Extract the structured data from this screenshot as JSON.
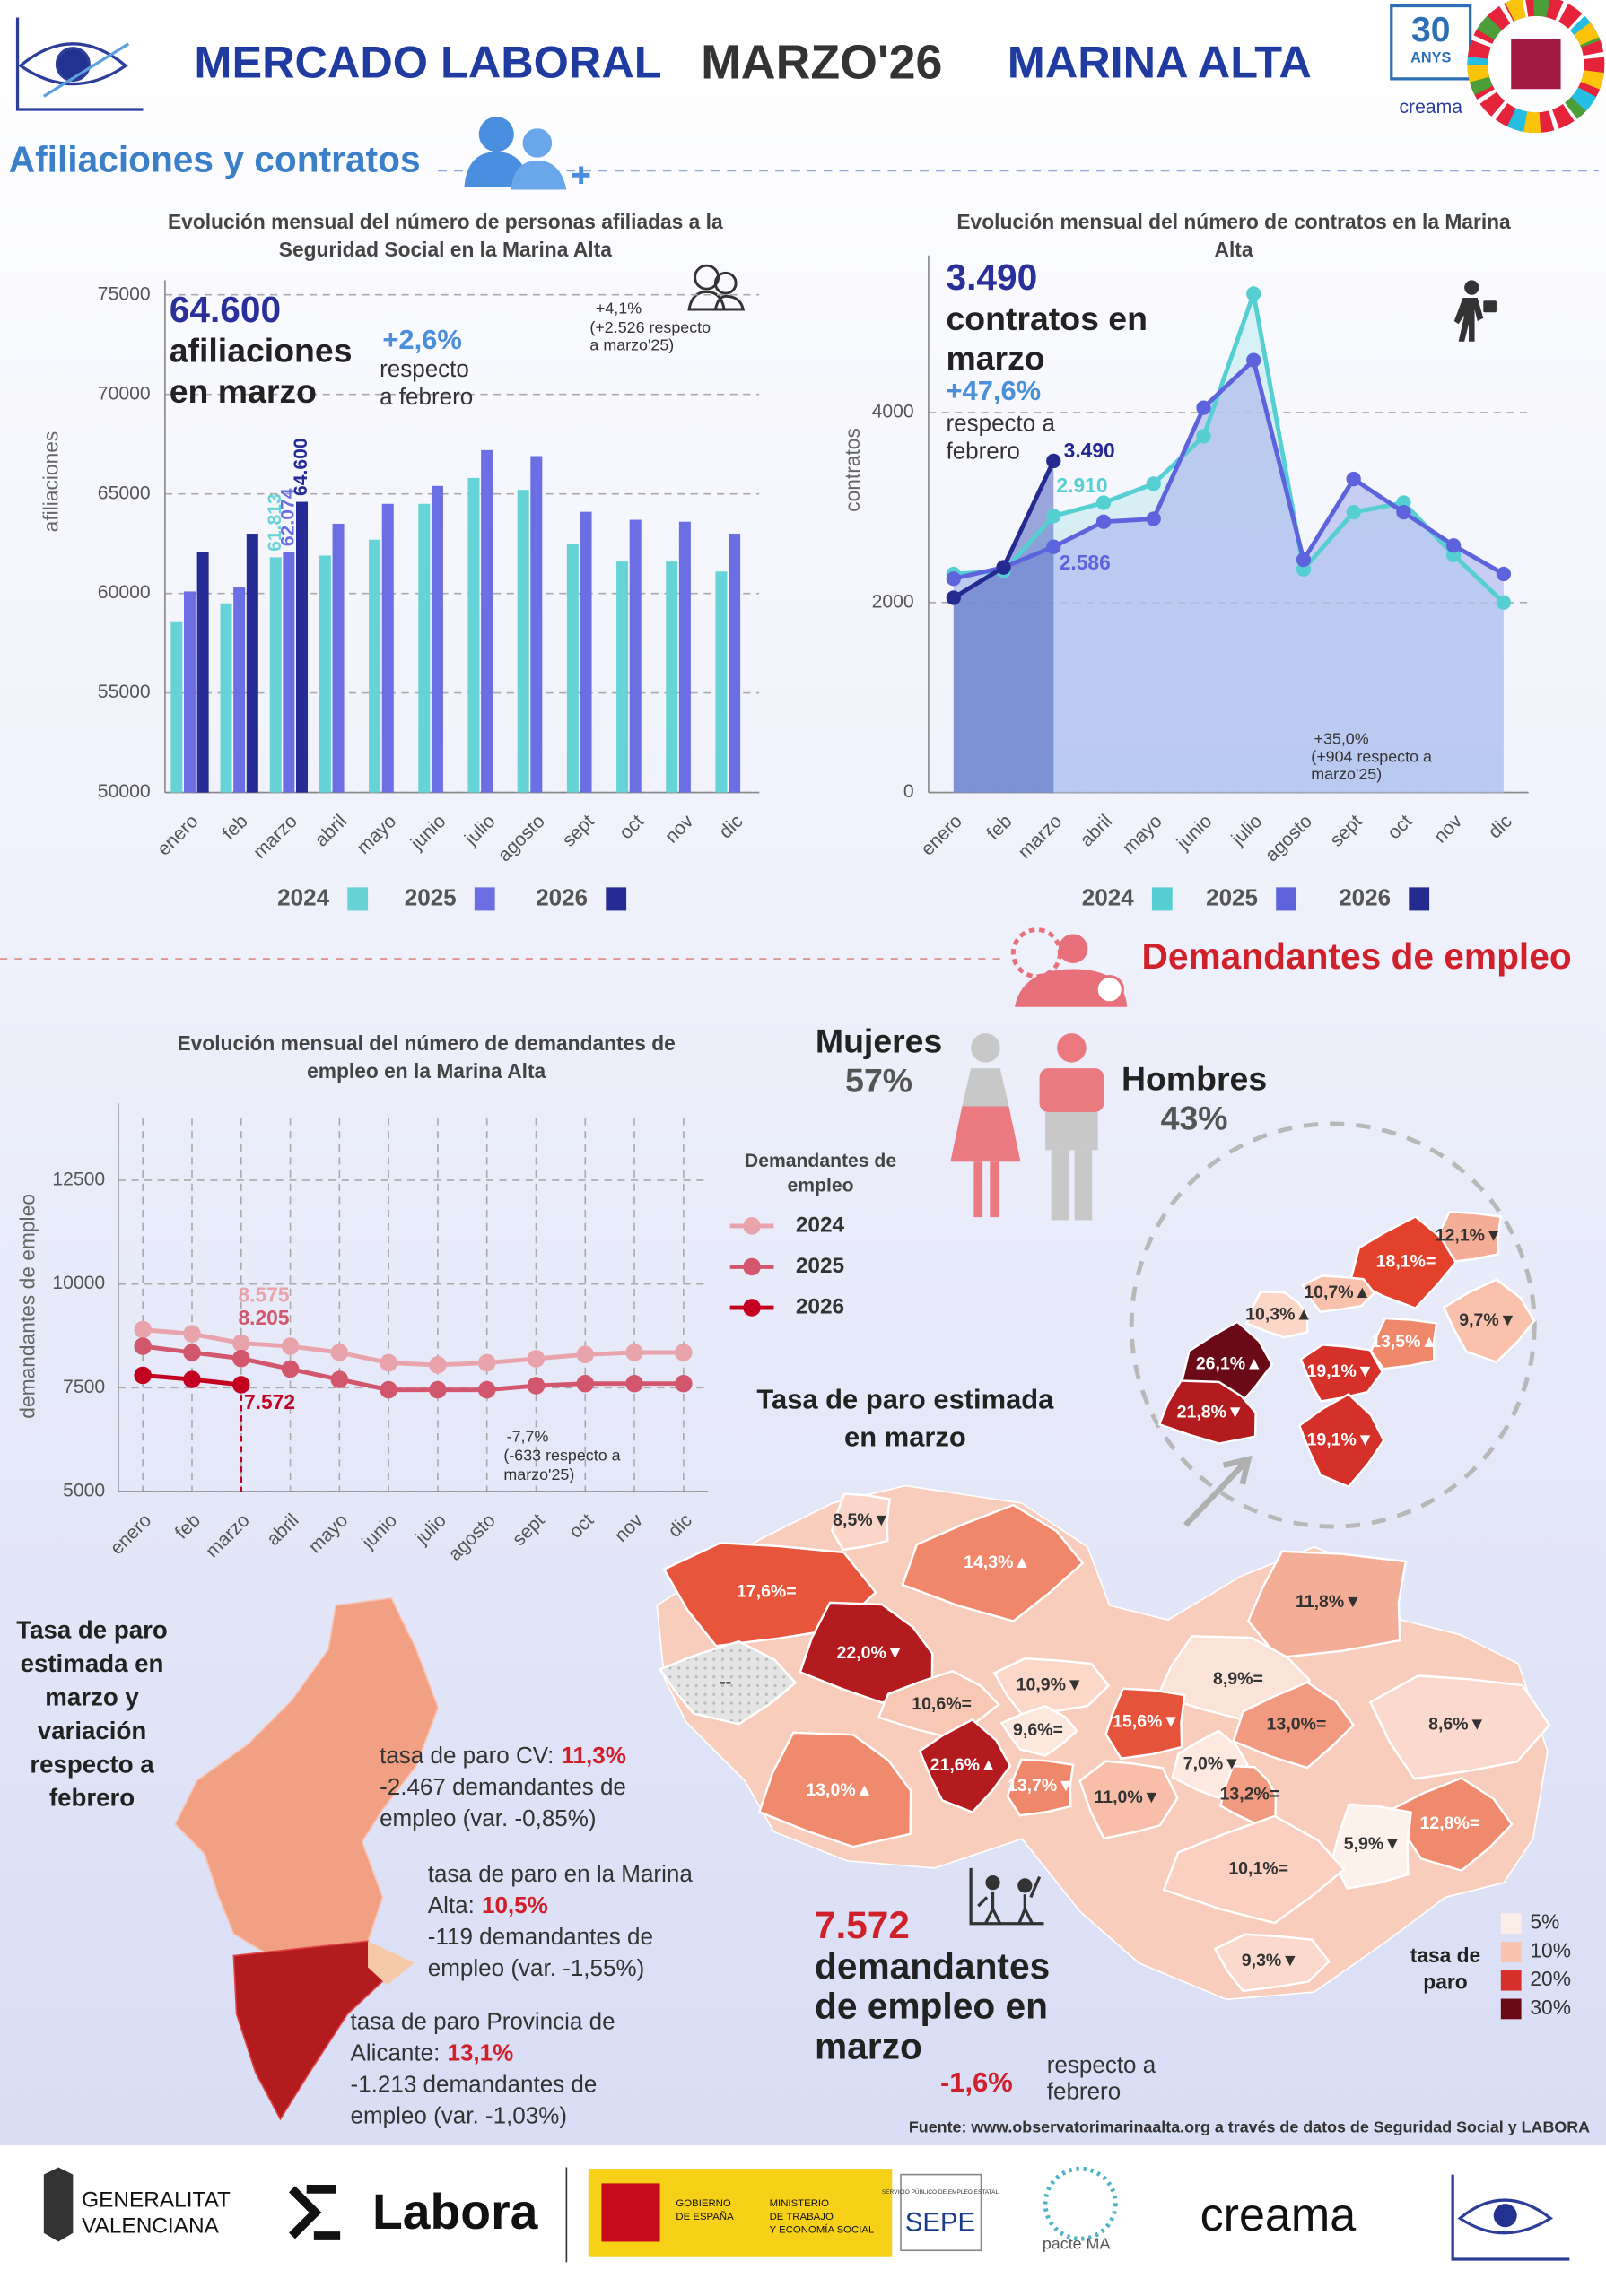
{
  "header": {
    "title_a": "MERCADO LABORAL",
    "title_b": "MARZO'26",
    "title_c": "MARINA ALTA",
    "logo_years": "30",
    "logo_anys": "ANYS",
    "logo_creama": "creama"
  },
  "section_1": "Afiliaciones y contratos",
  "section_2": "Demandantes de empleo",
  "chart_data": [
    {
      "type": "bar",
      "title": [
        "Evolución mensual del número de personas afiliadas a la",
        "Seguridad Social en la Marina Alta"
      ],
      "y_label": "afiliaciones",
      "categories": [
        "enero",
        "feb",
        "marzo",
        "abril",
        "mayo",
        "junio",
        "julio",
        "agosto",
        "sept",
        "oct",
        "nov",
        "dic"
      ],
      "series": [
        {
          "name": "2024",
          "color": "#66d4d6",
          "values": [
            58600,
            59500,
            61813,
            61900,
            62700,
            64500,
            65800,
            65200,
            62500,
            61600,
            61600,
            61100
          ],
          "value_labels": [
            null,
            null,
            "61.813",
            null,
            null,
            null,
            null,
            null,
            null,
            null,
            null,
            null
          ]
        },
        {
          "name": "2025",
          "color": "#6b6fe3",
          "values": [
            60100,
            60300,
            62074,
            63500,
            64500,
            65400,
            67200,
            66900,
            64100,
            63700,
            63600,
            63000
          ],
          "value_labels": [
            null,
            null,
            "62.074",
            null,
            null,
            null,
            null,
            null,
            null,
            null,
            null,
            null
          ]
        },
        {
          "name": "2026",
          "color": "#262c96",
          "values": [
            62100,
            63000,
            64600,
            null,
            null,
            null,
            null,
            null,
            null,
            null,
            null,
            null
          ],
          "value_labels": [
            null,
            null,
            "64.600",
            null,
            null,
            null,
            null,
            null,
            null,
            null,
            null,
            null
          ]
        }
      ],
      "ylim": [
        50000,
        75000
      ],
      "yticks": [
        50000,
        55000,
        60000,
        65000,
        70000,
        75000
      ],
      "grid": true,
      "annotations": [
        "64.600",
        "afiliaciones",
        "en marzo",
        "+2,6%",
        "respecto",
        "a febrero",
        "+4,1%",
        "(+2.526 respecto",
        "a marzo'25)"
      ]
    },
    {
      "type": "area",
      "title": [
        "Evolución mensual del número de contratos en la Marina",
        "Alta"
      ],
      "y_label": "contratos",
      "categories": [
        "enero",
        "feb",
        "marzo",
        "abril",
        "mayo",
        "junio",
        "julio",
        "agosto",
        "sept",
        "oct",
        "nov",
        "dic"
      ],
      "series": [
        {
          "name": "2024",
          "color": "#55cfd2",
          "values": [
            2300,
            2330,
            2910,
            3050,
            3250,
            3750,
            5250,
            2350,
            2950,
            3050,
            2500,
            2000
          ],
          "value_labels": [
            null,
            null,
            "2.910",
            null,
            null,
            null,
            null,
            null,
            null,
            null,
            null,
            null
          ]
        },
        {
          "name": "2025",
          "color": "#5d63dc",
          "values": [
            2250,
            2370,
            2586,
            2850,
            2880,
            4050,
            4550,
            2450,
            3300,
            2950,
            2600,
            2300
          ],
          "value_labels": [
            null,
            null,
            "2.586",
            null,
            null,
            null,
            null,
            null,
            null,
            null,
            null,
            null
          ]
        },
        {
          "name": "2026",
          "color": "#242a90",
          "values": [
            2050,
            2370,
            3490,
            null,
            null,
            null,
            null,
            null,
            null,
            null,
            null,
            null
          ],
          "value_labels": [
            null,
            null,
            "3.490",
            null,
            null,
            null,
            null,
            null,
            null,
            null,
            null,
            null
          ]
        }
      ],
      "ylim": [
        0,
        5500
      ],
      "yticks": [
        0,
        2000,
        4000
      ],
      "grid": true,
      "annotations": [
        "3.490",
        "contratos en",
        "marzo",
        "+47,6%",
        "respecto a",
        "febrero",
        "+35,0%",
        "(+904 respecto a",
        "marzo'25)"
      ]
    },
    {
      "type": "line",
      "title": [
        "Evolución mensual del número de demandantes de",
        "empleo en la Marina Alta"
      ],
      "y_label": "demandantes de empleo",
      "legend_title": [
        "Demandantes de",
        "empleo"
      ],
      "categories": [
        "enero",
        "feb",
        "marzo",
        "abril",
        "mayo",
        "junio",
        "julio",
        "agosto",
        "sept",
        "oct",
        "nov",
        "dic"
      ],
      "series": [
        {
          "name": "2024",
          "color": "#e9a3ab",
          "values": [
            8900,
            8800,
            8575,
            8500,
            8350,
            8100,
            8050,
            8100,
            8200,
            8300,
            8350,
            8350
          ],
          "value_labels": [
            null,
            null,
            "8.575",
            null,
            null,
            null,
            null,
            null,
            null,
            null,
            null,
            null
          ]
        },
        {
          "name": "2025",
          "color": "#d2566c",
          "values": [
            8500,
            8350,
            8205,
            7950,
            7700,
            7450,
            7450,
            7450,
            7550,
            7600,
            7600,
            7600
          ],
          "value_labels": [
            null,
            null,
            "8.205",
            null,
            null,
            null,
            null,
            null,
            null,
            null,
            null,
            null
          ]
        },
        {
          "name": "2026",
          "color": "#c40021",
          "values": [
            7800,
            7700,
            7572,
            null,
            null,
            null,
            null,
            null,
            null,
            null,
            null,
            null
          ],
          "value_labels": [
            null,
            null,
            "7.572",
            null,
            null,
            null,
            null,
            null,
            null,
            null,
            null,
            null
          ]
        }
      ],
      "ylim": [
        5000,
        14000
      ],
      "yticks": [
        5000,
        7500,
        10000,
        12500
      ],
      "grid": true,
      "annotations": [
        "-7,7%",
        "(-633 respecto a",
        "marzo'25)"
      ]
    }
  ],
  "gender": {
    "women_label": "Mujeres",
    "women_value": "57%",
    "men_label": "Hombres",
    "men_value": "43%"
  },
  "map": {
    "title": [
      "Tasa de paro estimada",
      "en marzo"
    ],
    "regions": [
      {
        "label": "8,5%▼",
        "color": "#fbd6c8"
      },
      {
        "label": "14,3%▲",
        "color": "#f0876a"
      },
      {
        "label": "17,6%=",
        "color": "#e6553c"
      },
      {
        "label": "22,0%▼",
        "color": "#b31b1f"
      },
      {
        "label": "--",
        "color": "#dcdcdc"
      },
      {
        "label": "11,8%▼",
        "color": "#f4ad96"
      },
      {
        "label": "10,6%=",
        "color": "#f9c8b4"
      },
      {
        "label": "10,9%▼",
        "color": "#fcd8c9"
      },
      {
        "label": "8,9%=",
        "color": "#fbe3d8"
      },
      {
        "label": "9,6%=",
        "color": "#fde8de"
      },
      {
        "label": "15,6%▼",
        "color": "#e5533b"
      },
      {
        "label": "13,0%=",
        "color": "#f29a80"
      },
      {
        "label": "8,6%▼",
        "color": "#fbd9cc"
      },
      {
        "label": "13,0%▲",
        "color": "#f08a6c"
      },
      {
        "label": "21,6%▲",
        "color": "#b31b1f"
      },
      {
        "label": "13,7%▼",
        "color": "#ef876a"
      },
      {
        "label": "7,0%▼",
        "color": "#fde9df"
      },
      {
        "label": "11,0%▼",
        "color": "#f8bea9"
      },
      {
        "label": "13,2%=",
        "color": "#f29a80"
      },
      {
        "label": "12,8%=",
        "color": "#f08a6c"
      },
      {
        "label": "5,9%▼",
        "color": "#fdf1eb"
      },
      {
        "label": "10,1%=",
        "color": "#fbd0c0"
      },
      {
        "label": "9,3%▼",
        "color": "#fbd9cc"
      }
    ],
    "inset": [
      {
        "label": "12,1%▼",
        "color": "#f4ad96"
      },
      {
        "label": "18,1%=",
        "color": "#e4412c"
      },
      {
        "label": "10,7%▲",
        "color": "#fac2ad"
      },
      {
        "label": "10,3%▲",
        "color": "#fcd6c6"
      },
      {
        "label": "9,7%▼",
        "color": "#fac2ad"
      },
      {
        "label": "13,5%▲",
        "color": "#ef876a"
      },
      {
        "label": "26,1%▲",
        "color": "#6a0a16"
      },
      {
        "label": "19,1%▼",
        "color": "#d6302a"
      },
      {
        "label": "21,8%▼",
        "color": "#b31b1f"
      },
      {
        "label": "19,1%▼",
        "color": "#d6302a"
      }
    ],
    "legend_title": [
      "tasa de",
      "paro"
    ],
    "legend": [
      {
        "label": "5%",
        "color": "#fbeee8"
      },
      {
        "label": "10%",
        "color": "#f9c2ae"
      },
      {
        "label": "20%",
        "color": "#d6302a"
      },
      {
        "label": "30%",
        "color": "#6a0a16"
      }
    ]
  },
  "valencia": {
    "title": [
      "Tasa de paro",
      "estimada en",
      "marzo y",
      "variación",
      "respecto a",
      "febrero"
    ],
    "blocks": [
      [
        {
          "text": "tasa de paro CV:",
          "rate": "11,3%"
        },
        {
          "text": "-2.467 demandantes de"
        },
        {
          "text": "empleo (var. -0,85%)"
        }
      ],
      [
        {
          "text": "tasa de paro en la Marina"
        },
        {
          "text": "Alta:",
          "rate": "10,5%"
        },
        {
          "text": "-119 demandantes de"
        },
        {
          "text": "empleo (var. -1,55%)"
        }
      ],
      [
        {
          "text": "tasa de paro Provincia de"
        },
        {
          "text": "Alicante:",
          "rate": "13,1%"
        },
        {
          "text": "-1.213 demandantes de"
        },
        {
          "text": "empleo (var. -1,03%)"
        }
      ]
    ]
  },
  "summary": {
    "value": "7.572",
    "lines": [
      "demandantes",
      "de empleo en",
      "marzo"
    ],
    "change": "-1,6%",
    "change_text": [
      "respecto a",
      "febrero"
    ]
  },
  "source": "Fuente: www.observatorimarinaalta.org a través de datos de Seguridad Social y LABORA",
  "footer": {
    "gva_1": "GENERALITAT",
    "gva_2": "VALENCIANA",
    "labora": "Labora",
    "gob_1": "GOBIERNO",
    "gob_2": "DE ESPAÑA",
    "min_1": "MINISTERIO",
    "min_2": "DE TRABAJO",
    "min_3": "Y ECONOMÍA SOCIAL",
    "sepe_small": "SERVICIO PÚBLICO DE EMPLEO ESTATAL",
    "sepe": "SEPE",
    "pacte": "pacte MA",
    "creama": "creama"
  }
}
